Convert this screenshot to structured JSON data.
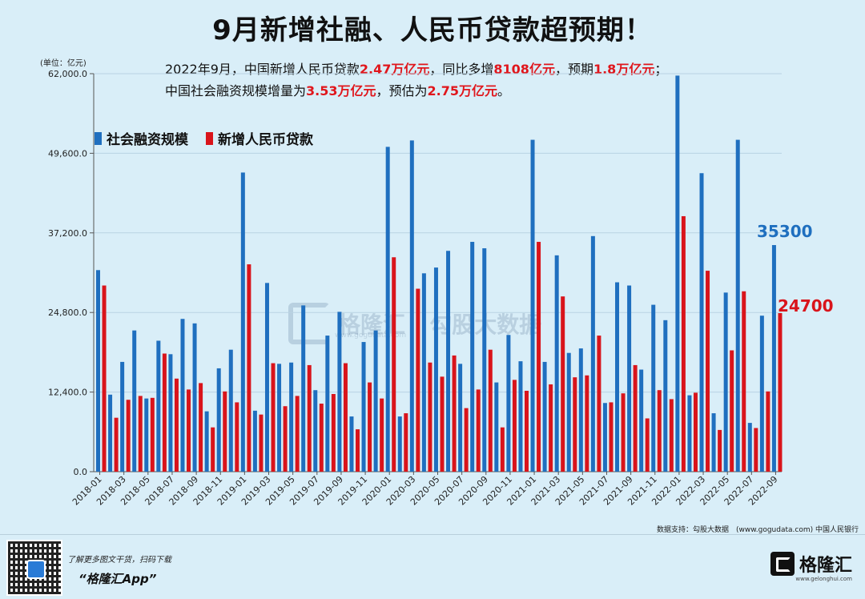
{
  "title": "9月新增社融、人民币贷款超预期！",
  "subtitle": {
    "line1": [
      {
        "text": "2022年9月，中国新增人民币贷款",
        "hl": false
      },
      {
        "text": "2.47万亿元",
        "hl": true
      },
      {
        "text": "，同比多增",
        "hl": false
      },
      {
        "text": "8108亿元",
        "hl": true
      },
      {
        "text": "，预期",
        "hl": false
      },
      {
        "text": "1.8万亿元",
        "hl": true
      },
      {
        "text": "；",
        "hl": false
      }
    ],
    "line2": [
      {
        "text": "中国社会融资规模增量为",
        "hl": false
      },
      {
        "text": "3.53万亿元",
        "hl": true
      },
      {
        "text": "，预估为",
        "hl": false
      },
      {
        "text": "2.75万亿元",
        "hl": true
      },
      {
        "text": "。",
        "hl": false
      }
    ]
  },
  "unit_label": "(单位：亿元)",
  "source": "数据支持：勾股大数据　(www.gogudata.com) 中国人民银行",
  "watermark": {
    "brand": "格隆汇",
    "divider": "|",
    "text": "勾股大数据",
    "domain": "www.gogudata.com"
  },
  "footer": {
    "text": "了解更多图文干货，扫码下载",
    "app": "“格隆汇App”",
    "brand": "格隆汇",
    "domain": "www.gelonghui.com"
  },
  "colors": {
    "tsf": "#1f6fbf",
    "loans": "#d9141b",
    "axis": "#555555",
    "grid": "#b9d3e3"
  },
  "chart_data": {
    "type": "bar",
    "title": "9月新增社融、人民币贷款超预期！",
    "ylabel": "(单位：亿元)",
    "ylim": [
      0,
      62000
    ],
    "yticks": [
      "0.0",
      "12,400.0",
      "24,800.0",
      "37,200.0",
      "49,600.0",
      "62,000.0"
    ],
    "ytick_values": [
      0,
      12400,
      24800,
      37200,
      49600,
      62000
    ],
    "categories": [
      "2018-01",
      "2018-02",
      "2018-03",
      "2018-04",
      "2018-05",
      "2018-06",
      "2018-07",
      "2018-08",
      "2018-09",
      "2018-10",
      "2018-11",
      "2018-12",
      "2019-01",
      "2019-02",
      "2019-03",
      "2019-04",
      "2019-05",
      "2019-06",
      "2019-07",
      "2019-08",
      "2019-09",
      "2019-10",
      "2019-11",
      "2019-12",
      "2020-01",
      "2020-02",
      "2020-03",
      "2020-04",
      "2020-05",
      "2020-06",
      "2020-07",
      "2020-08",
      "2020-09",
      "2020-10",
      "2020-11",
      "2020-12",
      "2021-01",
      "2021-02",
      "2021-03",
      "2021-04",
      "2021-05",
      "2021-06",
      "2021-07",
      "2021-08",
      "2021-09",
      "2021-10",
      "2021-11",
      "2021-12",
      "2022-01",
      "2022-02",
      "2022-03",
      "2022-04",
      "2022-05",
      "2022-06",
      "2022-07",
      "2022-08",
      "2022-09"
    ],
    "xtick_labels": [
      "2018-01",
      "2018-03",
      "2018-05",
      "2018-07",
      "2018-09",
      "2018-11",
      "2019-01",
      "2019-03",
      "2019-05",
      "2019-07",
      "2019-09",
      "2019-11",
      "2020-01",
      "2020-03",
      "2020-05",
      "2020-07",
      "2020-09",
      "2020-11",
      "2021-01",
      "2021-03",
      "2021-05",
      "2021-07",
      "2021-09",
      "2021-11",
      "2022-01",
      "2022-03",
      "2022-05",
      "2022-07",
      "2022-09"
    ],
    "series": [
      {
        "name": "社会融资规模",
        "color": "#1f6fbf",
        "values": [
          31400,
          12000,
          17100,
          22000,
          11400,
          20400,
          18300,
          23800,
          23100,
          9400,
          16100,
          19000,
          46600,
          9500,
          29400,
          16800,
          17000,
          25900,
          12700,
          21200,
          24900,
          8600,
          20200,
          22000,
          50600,
          8600,
          51600,
          30900,
          31800,
          34400,
          16800,
          35800,
          34800,
          13900,
          21300,
          17200,
          51700,
          17100,
          33700,
          18500,
          19200,
          36700,
          10700,
          29500,
          29000,
          15900,
          26000,
          23600,
          61700,
          11900,
          46500,
          9100,
          27900,
          51700,
          7600,
          24300,
          35300
        ]
      },
      {
        "name": "新增人民币贷款",
        "color": "#d9141b",
        "values": [
          29000,
          8400,
          11200,
          11800,
          11500,
          18400,
          14500,
          12800,
          13800,
          6900,
          12500,
          10800,
          32300,
          8900,
          16900,
          10200,
          11800,
          16600,
          10600,
          12100,
          16900,
          6600,
          13900,
          11400,
          33400,
          9100,
          28500,
          17000,
          14800,
          18100,
          9900,
          12800,
          19000,
          6900,
          14300,
          12600,
          35800,
          13600,
          27300,
          14700,
          15000,
          21200,
          10800,
          12200,
          16600,
          8300,
          12700,
          11300,
          39800,
          12300,
          31300,
          6500,
          18900,
          28100,
          6800,
          12500,
          24700
        ]
      }
    ],
    "annotations": [
      {
        "text": "35300",
        "series": "社会融资规模",
        "category": "2022-09",
        "color": "#1f6fbf"
      },
      {
        "text": "24700",
        "series": "新增人民币贷款",
        "category": "2022-09",
        "color": "#d9141b"
      }
    ],
    "legend": "top-left"
  }
}
